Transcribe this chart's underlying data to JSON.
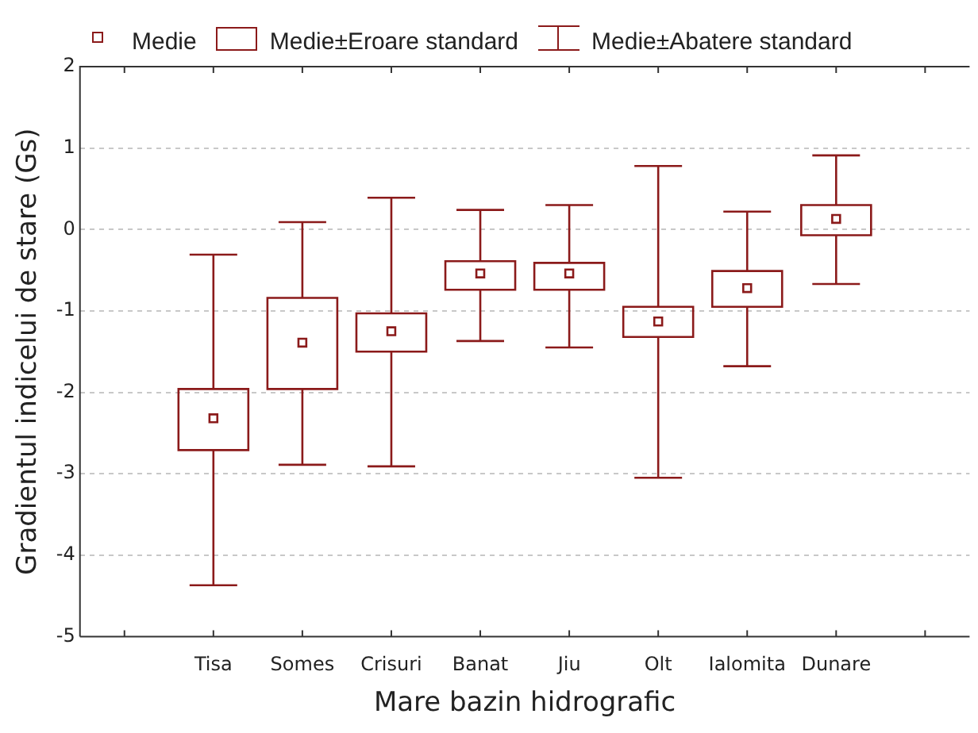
{
  "chart_data": {
    "type": "box",
    "xlabel": "Mare bazin hidrografic",
    "ylabel": "Gradientul indicelui de stare (Gs)",
    "categories": [
      "Tisa",
      "Somes",
      "Crisuri",
      "Banat",
      "Jiu",
      "Olt",
      "Ialomita",
      "Dunare"
    ],
    "series": [
      {
        "color": "#8b1a1a",
        "boxes": [
          {
            "low": -4.37,
            "q1": -2.71,
            "median": -2.32,
            "q3": -1.96,
            "high": -0.31
          },
          {
            "low": -2.89,
            "q1": -1.96,
            "median": -1.39,
            "q3": -0.84,
            "high": 0.09
          },
          {
            "low": -2.91,
            "q1": -1.5,
            "median": -1.25,
            "q3": -1.03,
            "high": 0.39
          },
          {
            "low": -1.37,
            "q1": -0.74,
            "median": -0.54,
            "q3": -0.39,
            "high": 0.24
          },
          {
            "low": -1.45,
            "q1": -0.74,
            "median": -0.54,
            "q3": -0.41,
            "high": 0.3
          },
          {
            "low": -3.05,
            "q1": -1.32,
            "median": -1.13,
            "q3": -0.95,
            "high": 0.78
          },
          {
            "low": -1.68,
            "q1": -0.95,
            "median": -0.72,
            "q3": -0.51,
            "high": 0.22
          },
          {
            "low": -0.67,
            "q1": -0.07,
            "median": 0.13,
            "q3": 0.3,
            "high": 0.91
          }
        ]
      }
    ],
    "annotations": [
      "Medie",
      "Medie±Eroare standard",
      "Medie±Abatere standard"
    ],
    "ylim": [
      -5,
      2
    ],
    "yticks": [
      -5,
      -4,
      -3,
      -2,
      -1,
      0,
      1,
      2
    ],
    "grid": "y",
    "marker": "square"
  }
}
